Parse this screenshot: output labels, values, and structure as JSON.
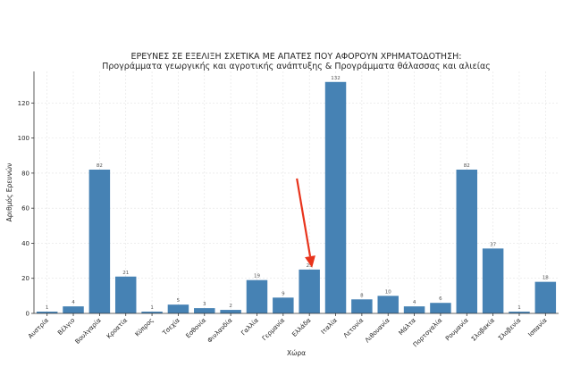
{
  "chart_data": {
    "type": "bar",
    "title_lines": [
      "ΕΡΕΥΝΕΣ ΣΕ ΕΞΕΛΙΞΗ ΣΧΕΤΙΚΑ ΜΕ ΑΠΑΤΕΣ ΠΟΥ ΑΦΟΡΟΥΝ ΧΡΗΜΑΤΟΔΟΤΗΣΗ:",
      "Προγράμματα γεωργικής και αγροτικής ανάπτυξης & Προγράμματα θάλασσας και αλιείας"
    ],
    "xlabel": "Χώρα",
    "ylabel": "Αριθμός Ερευνών",
    "ylim": [
      0,
      138
    ],
    "yticks": [
      0,
      20,
      40,
      60,
      80,
      100,
      120
    ],
    "grid": true,
    "bar_color": "#4682b4",
    "highlight": {
      "category": "Ελλάδα",
      "marker": "red-arrow",
      "color": "#e8341c"
    },
    "categories": [
      "Αυστρία",
      "Βέλγιο",
      "Βουλγαρία",
      "Κροατία",
      "Κύπρος",
      "Τσεχία",
      "Εσθονία",
      "Φινλανδία",
      "Γαλλία",
      "Γερμανία",
      "Ελλάδα",
      "Ιταλία",
      "Λετονία",
      "Λιθουανία",
      "Μάλτα",
      "Πορτογαλία",
      "Ρουμανία",
      "Σλοβακία",
      "Σλοβενία",
      "Ισπανία"
    ],
    "values": [
      1,
      4,
      82,
      21,
      1,
      5,
      3,
      2,
      19,
      9,
      25,
      132,
      8,
      10,
      4,
      6,
      82,
      37,
      1,
      18
    ]
  }
}
